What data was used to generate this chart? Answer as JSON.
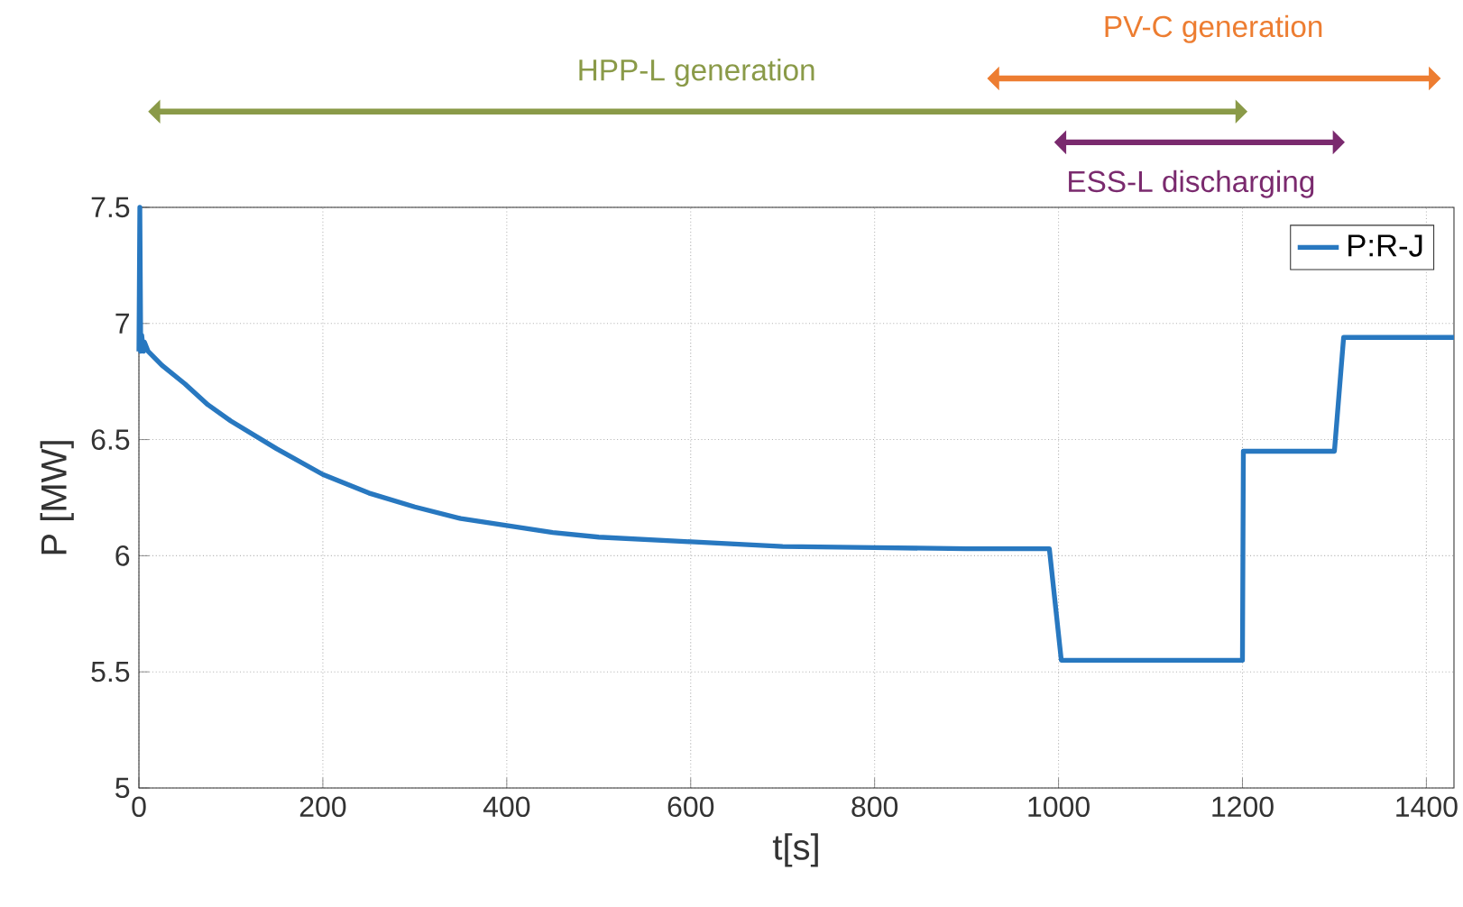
{
  "chart_data": {
    "type": "line",
    "xlabel": "t[s]",
    "ylabel": "P [MW]",
    "xlim": [
      0,
      1430
    ],
    "ylim": [
      5,
      7.5
    ],
    "xticks": [
      0,
      200,
      400,
      600,
      800,
      1000,
      1200,
      1400
    ],
    "yticks": [
      5,
      5.5,
      6,
      6.5,
      7,
      7.5
    ],
    "grid": true,
    "legend": "top right",
    "marker": "none",
    "line_style": "solid",
    "series": [
      {
        "name": "P:R-J",
        "color": "#2878c0",
        "x": [
          0,
          1,
          2,
          3,
          5,
          6,
          10,
          25,
          50,
          75,
          100,
          150,
          200,
          250,
          300,
          350,
          400,
          450,
          500,
          600,
          700,
          800,
          900,
          990,
          1003,
          1100,
          1200,
          1201,
          1300,
          1310,
          1430
        ],
        "values": [
          6.88,
          7.5,
          6.88,
          6.95,
          6.88,
          6.92,
          6.88,
          6.82,
          6.74,
          6.65,
          6.58,
          6.46,
          6.35,
          6.27,
          6.21,
          6.16,
          6.13,
          6.1,
          6.08,
          6.06,
          6.04,
          6.035,
          6.03,
          6.03,
          5.55,
          5.55,
          5.55,
          6.45,
          6.45,
          6.94,
          6.94
        ]
      }
    ],
    "annotations": [
      "HPP-L generation",
      "PV-C generation",
      "ESS-L discharging"
    ]
  }
}
